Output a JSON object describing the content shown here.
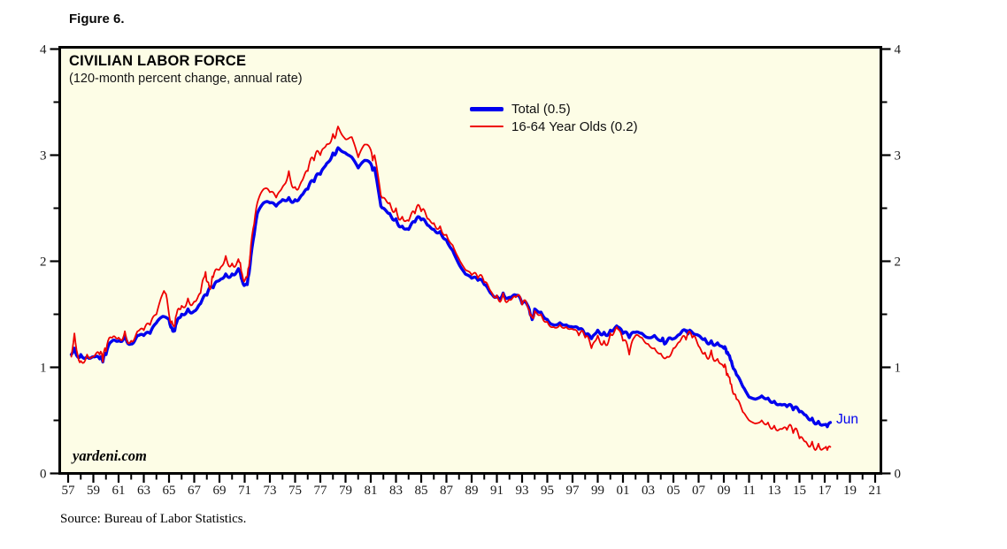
{
  "figure": {
    "label": "Figure 6."
  },
  "chart": {
    "title": "CIVILIAN LABOR FORCE",
    "subtitle": "(120-month percent change, annual rate)",
    "watermark": "yardeni.com",
    "source": "Source: Bureau of Labor Statistics."
  },
  "colors": {
    "total_line": "#0000ee",
    "age_line": "#ee0000",
    "plot_background": "#fdfde6",
    "border": "#000000",
    "tick_label": "#1a1a1a"
  },
  "chart_data": {
    "type": "line",
    "title": "CIVILIAN LABOR FORCE",
    "subtitle": "(120-month percent change, annual rate)",
    "grid": false,
    "legend_position": "top-center-inside",
    "x_axis": {
      "range": [
        1956.4,
        2021.4
      ],
      "major_tick_years": [
        1957,
        1959,
        1961,
        1963,
        1965,
        1967,
        1969,
        1971,
        1973,
        1975,
        1977,
        1979,
        1981,
        1983,
        1985,
        1987,
        1989,
        1991,
        1993,
        1995,
        1997,
        1999,
        2001,
        2003,
        2005,
        2007,
        2009,
        2011,
        2013,
        2015,
        2017,
        2019,
        2021
      ],
      "major_tick_labels": [
        "57",
        "59",
        "61",
        "63",
        "65",
        "67",
        "69",
        "71",
        "73",
        "75",
        "77",
        "79",
        "81",
        "83",
        "85",
        "87",
        "89",
        "91",
        "93",
        "95",
        "97",
        "99",
        "01",
        "03",
        "05",
        "07",
        "09",
        "11",
        "13",
        "15",
        "17",
        "19",
        "21"
      ],
      "minor_tick_years": [
        1958,
        1960,
        1962,
        1964,
        1966,
        1968,
        1970,
        1972,
        1974,
        1976,
        1978,
        1980,
        1982,
        1984,
        1986,
        1988,
        1990,
        1992,
        1994,
        1996,
        1998,
        2000,
        2002,
        2004,
        2006,
        2008,
        2010,
        2012,
        2014,
        2016,
        2018,
        2020
      ]
    },
    "y_axis": {
      "range": [
        0,
        4
      ],
      "major_ticks": [
        0,
        1,
        2,
        3,
        4
      ],
      "major_tick_labels": [
        "0",
        "1",
        "2",
        "3",
        "4"
      ],
      "minor_ticks": [
        0.5,
        1.5,
        2.5,
        3.5
      ],
      "labels_on_both_sides": true
    },
    "legend": [
      {
        "name": "Total (0.5)",
        "color": "#0000ee",
        "thickness": 5,
        "latest_value": 0.5
      },
      {
        "name": "16-64 Year Olds (0.2)",
        "color": "#ee0000",
        "thickness": 2.5,
        "latest_value": 0.2
      }
    ],
    "annotation": {
      "text": "Jun",
      "x": 2017.45,
      "y": 0.48,
      "series": "Total"
    },
    "series": [
      {
        "name": "Total (0.5)",
        "color": "#0000ee",
        "stroke_width": 3.4,
        "jitter": 0.03,
        "points": [
          [
            1957.25,
            1.12
          ],
          [
            1957.5,
            1.18
          ],
          [
            1957.75,
            1.1
          ],
          [
            1958,
            1.12
          ],
          [
            1958.5,
            1.1
          ],
          [
            1959,
            1.1
          ],
          [
            1959.5,
            1.08
          ],
          [
            1959.75,
            1.05
          ],
          [
            1960,
            1.12
          ],
          [
            1960.5,
            1.25
          ],
          [
            1961,
            1.25
          ],
          [
            1961.5,
            1.3
          ],
          [
            1962,
            1.22
          ],
          [
            1962.5,
            1.3
          ],
          [
            1963,
            1.3
          ],
          [
            1963.5,
            1.32
          ],
          [
            1964,
            1.42
          ],
          [
            1964.5,
            1.48
          ],
          [
            1965,
            1.45
          ],
          [
            1965.3,
            1.34
          ],
          [
            1965.6,
            1.42
          ],
          [
            1966,
            1.5
          ],
          [
            1966.5,
            1.55
          ],
          [
            1967,
            1.53
          ],
          [
            1967.5,
            1.6
          ],
          [
            1968,
            1.68
          ],
          [
            1968.5,
            1.75
          ],
          [
            1969,
            1.82
          ],
          [
            1969.5,
            1.88
          ],
          [
            1970,
            1.88
          ],
          [
            1970.5,
            1.93
          ],
          [
            1970.8,
            1.82
          ],
          [
            1971.2,
            1.78
          ],
          [
            1971.5,
            2.05
          ],
          [
            1971.75,
            2.25
          ],
          [
            1972,
            2.45
          ],
          [
            1972.5,
            2.55
          ],
          [
            1973,
            2.55
          ],
          [
            1973.5,
            2.52
          ],
          [
            1974,
            2.58
          ],
          [
            1974.5,
            2.6
          ],
          [
            1975,
            2.58
          ],
          [
            1975.5,
            2.62
          ],
          [
            1976,
            2.68
          ],
          [
            1976.5,
            2.75
          ],
          [
            1977,
            2.82
          ],
          [
            1977.5,
            2.92
          ],
          [
            1978,
            3.02
          ],
          [
            1978.4,
            3.07
          ],
          [
            1979,
            3.02
          ],
          [
            1979.5,
            2.98
          ],
          [
            1980,
            2.88
          ],
          [
            1980.5,
            2.95
          ],
          [
            1981,
            2.92
          ],
          [
            1981.3,
            2.88
          ],
          [
            1981.8,
            2.52
          ],
          [
            1982,
            2.5
          ],
          [
            1982.5,
            2.45
          ],
          [
            1983,
            2.4
          ],
          [
            1983.5,
            2.33
          ],
          [
            1984,
            2.3
          ],
          [
            1984.5,
            2.37
          ],
          [
            1985,
            2.39
          ],
          [
            1985.5,
            2.34
          ],
          [
            1986,
            2.3
          ],
          [
            1986.5,
            2.28
          ],
          [
            1987,
            2.2
          ],
          [
            1987.5,
            2.1
          ],
          [
            1988,
            1.97
          ],
          [
            1988.5,
            1.88
          ],
          [
            1989,
            1.84
          ],
          [
            1989.5,
            1.82
          ],
          [
            1990,
            1.78
          ],
          [
            1990.5,
            1.7
          ],
          [
            1991,
            1.67
          ],
          [
            1991.5,
            1.7
          ],
          [
            1992,
            1.66
          ],
          [
            1992.5,
            1.68
          ],
          [
            1993,
            1.6
          ],
          [
            1993.5,
            1.57
          ],
          [
            1993.8,
            1.45
          ],
          [
            1994,
            1.55
          ],
          [
            1994.5,
            1.52
          ],
          [
            1995,
            1.45
          ],
          [
            1995.5,
            1.4
          ],
          [
            1996,
            1.42
          ],
          [
            1996.5,
            1.4
          ],
          [
            1997,
            1.38
          ],
          [
            1997.5,
            1.36
          ],
          [
            1998,
            1.3
          ],
          [
            1998.5,
            1.27
          ],
          [
            1999,
            1.35
          ],
          [
            1999.5,
            1.33
          ],
          [
            2000,
            1.35
          ],
          [
            2000.5,
            1.39
          ],
          [
            2001,
            1.32
          ],
          [
            2001.5,
            1.28
          ],
          [
            2002,
            1.33
          ],
          [
            2002.5,
            1.32
          ],
          [
            2003,
            1.28
          ],
          [
            2003.5,
            1.3
          ],
          [
            2004,
            1.25
          ],
          [
            2004.3,
            1.22
          ],
          [
            2005,
            1.27
          ],
          [
            2005.5,
            1.31
          ],
          [
            2006,
            1.34
          ],
          [
            2006.3,
            1.35
          ],
          [
            2007,
            1.3
          ],
          [
            2007.5,
            1.27
          ],
          [
            2008,
            1.25
          ],
          [
            2008.5,
            1.23
          ],
          [
            2009,
            1.18
          ],
          [
            2009.3,
            1.14
          ],
          [
            2009.6,
            1.06
          ],
          [
            2010,
            0.93
          ],
          [
            2010.5,
            0.82
          ],
          [
            2011,
            0.72
          ],
          [
            2011.5,
            0.7
          ],
          [
            2012,
            0.73
          ],
          [
            2012.5,
            0.71
          ],
          [
            2013,
            0.68
          ],
          [
            2013.5,
            0.65
          ],
          [
            2014,
            0.63
          ],
          [
            2014.5,
            0.6
          ],
          [
            2015,
            0.58
          ],
          [
            2015.5,
            0.55
          ],
          [
            2016,
            0.52
          ],
          [
            2016.5,
            0.49
          ],
          [
            2017,
            0.46
          ],
          [
            2017.2,
            0.44
          ],
          [
            2017.45,
            0.48
          ]
        ]
      },
      {
        "name": "16-64 Year Olds (0.2)",
        "color": "#ee0000",
        "stroke_width": 1.8,
        "jitter": 0.055,
        "points": [
          [
            1957.25,
            1.1
          ],
          [
            1957.5,
            1.32
          ],
          [
            1957.75,
            1.12
          ],
          [
            1958,
            1.06
          ],
          [
            1958.5,
            1.12
          ],
          [
            1959,
            1.1
          ],
          [
            1959.5,
            1.12
          ],
          [
            1959.75,
            1.05
          ],
          [
            1960,
            1.15
          ],
          [
            1960.5,
            1.28
          ],
          [
            1961,
            1.28
          ],
          [
            1961.5,
            1.34
          ],
          [
            1962,
            1.25
          ],
          [
            1962.5,
            1.34
          ],
          [
            1963,
            1.35
          ],
          [
            1963.5,
            1.4
          ],
          [
            1964,
            1.5
          ],
          [
            1964.6,
            1.72
          ],
          [
            1965,
            1.5
          ],
          [
            1965.3,
            1.4
          ],
          [
            1965.6,
            1.5
          ],
          [
            1966,
            1.58
          ],
          [
            1966.5,
            1.65
          ],
          [
            1967,
            1.62
          ],
          [
            1967.5,
            1.7
          ],
          [
            1967.9,
            1.9
          ],
          [
            1968.2,
            1.75
          ],
          [
            1968.5,
            1.85
          ],
          [
            1969,
            1.92
          ],
          [
            1969.5,
            2.05
          ],
          [
            1970,
            1.98
          ],
          [
            1970.5,
            2.02
          ],
          [
            1970.8,
            1.88
          ],
          [
            1971.2,
            1.85
          ],
          [
            1971.5,
            2.15
          ],
          [
            1971.75,
            2.35
          ],
          [
            1972,
            2.55
          ],
          [
            1972.5,
            2.68
          ],
          [
            1973,
            2.65
          ],
          [
            1973.5,
            2.6
          ],
          [
            1974,
            2.7
          ],
          [
            1974.5,
            2.85
          ],
          [
            1975,
            2.7
          ],
          [
            1975.5,
            2.75
          ],
          [
            1976,
            2.85
          ],
          [
            1976.5,
            2.95
          ],
          [
            1977,
            3.0
          ],
          [
            1977.5,
            3.1
          ],
          [
            1978,
            3.2
          ],
          [
            1978.4,
            3.27
          ],
          [
            1979,
            3.15
          ],
          [
            1979.5,
            3.17
          ],
          [
            1980,
            2.98
          ],
          [
            1980.5,
            3.1
          ],
          [
            1981,
            3.05
          ],
          [
            1981.3,
            3.0
          ],
          [
            1981.8,
            2.62
          ],
          [
            1982,
            2.6
          ],
          [
            1982.5,
            2.55
          ],
          [
            1983,
            2.5
          ],
          [
            1983.5,
            2.42
          ],
          [
            1984,
            2.38
          ],
          [
            1984.5,
            2.45
          ],
          [
            1985,
            2.47
          ],
          [
            1985.5,
            2.4
          ],
          [
            1986,
            2.36
          ],
          [
            1986.5,
            2.33
          ],
          [
            1987,
            2.25
          ],
          [
            1987.5,
            2.15
          ],
          [
            1988,
            2.02
          ],
          [
            1988.5,
            1.92
          ],
          [
            1989,
            1.87
          ],
          [
            1989.5,
            1.84
          ],
          [
            1990,
            1.8
          ],
          [
            1990.5,
            1.72
          ],
          [
            1991,
            1.68
          ],
          [
            1991.5,
            1.7
          ],
          [
            1992,
            1.64
          ],
          [
            1992.5,
            1.66
          ],
          [
            1993,
            1.59
          ],
          [
            1993.5,
            1.55
          ],
          [
            1993.8,
            1.47
          ],
          [
            1994,
            1.53
          ],
          [
            1994.5,
            1.5
          ],
          [
            1995,
            1.43
          ],
          [
            1995.5,
            1.38
          ],
          [
            1996,
            1.4
          ],
          [
            1996.5,
            1.38
          ],
          [
            1997,
            1.36
          ],
          [
            1997.5,
            1.3
          ],
          [
            1998,
            1.28
          ],
          [
            1998.5,
            1.18
          ],
          [
            1999,
            1.3
          ],
          [
            1999.5,
            1.25
          ],
          [
            2000,
            1.32
          ],
          [
            2000.5,
            1.38
          ],
          [
            2001,
            1.25
          ],
          [
            2001.5,
            1.12
          ],
          [
            2002,
            1.3
          ],
          [
            2002.5,
            1.28
          ],
          [
            2003,
            1.22
          ],
          [
            2003.5,
            1.18
          ],
          [
            2004,
            1.13
          ],
          [
            2004.5,
            1.1
          ],
          [
            2005,
            1.18
          ],
          [
            2005.5,
            1.24
          ],
          [
            2006,
            1.26
          ],
          [
            2006.5,
            1.28
          ],
          [
            2007,
            1.2
          ],
          [
            2007.5,
            1.14
          ],
          [
            2008,
            1.16
          ],
          [
            2008.5,
            1.08
          ],
          [
            2009,
            1.0
          ],
          [
            2009.3,
            0.94
          ],
          [
            2009.6,
            0.84
          ],
          [
            2010,
            0.7
          ],
          [
            2010.5,
            0.58
          ],
          [
            2011,
            0.5
          ],
          [
            2011.5,
            0.47
          ],
          [
            2012,
            0.5
          ],
          [
            2012.5,
            0.48
          ],
          [
            2013,
            0.45
          ],
          [
            2013.5,
            0.42
          ],
          [
            2014,
            0.41
          ],
          [
            2014.5,
            0.38
          ],
          [
            2015,
            0.33
          ],
          [
            2015.5,
            0.3
          ],
          [
            2016,
            0.3
          ],
          [
            2016.5,
            0.28
          ],
          [
            2017,
            0.24
          ],
          [
            2017.2,
            0.22
          ],
          [
            2017.45,
            0.25
          ]
        ]
      }
    ]
  }
}
